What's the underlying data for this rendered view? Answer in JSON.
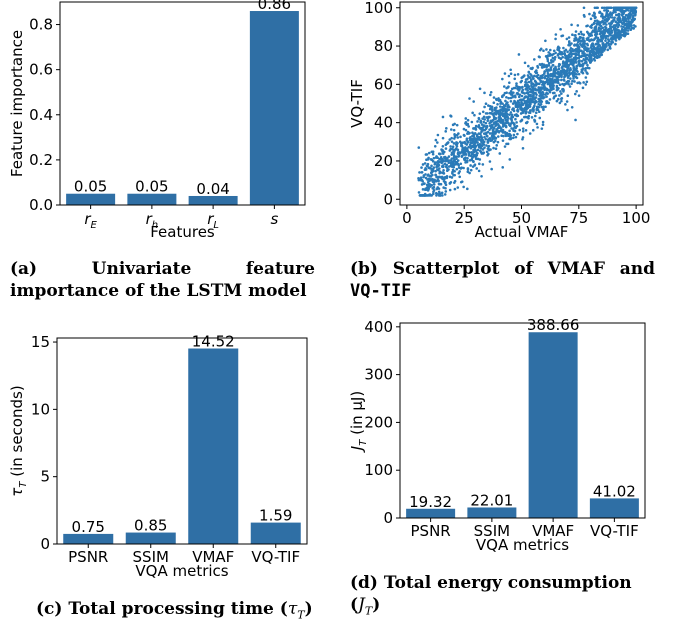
{
  "colors": {
    "bar": "#2f6fa5",
    "point": "#2a7ab8",
    "axis": "#000000"
  },
  "captions": {
    "a": "(a) Univariate feature importance of the LSTM model",
    "b_prefix": "(b) Scatterplot of VMAF and",
    "b_mono": "VQ-TIF",
    "c_prefix": "(c) Total processing time (",
    "c_math": "τ",
    "c_sub": "T",
    "c_suffix": ")",
    "d_prefix": "(d) Total energy consumption",
    "d_math": "J",
    "d_sub": "T"
  },
  "chart_data": [
    {
      "id": "a",
      "type": "bar",
      "categories": [
        "r_E",
        "r_h",
        "r_L",
        "s"
      ],
      "category_labels": [
        {
          "base": "r",
          "sub": "E"
        },
        {
          "base": "r",
          "sub": "h"
        },
        {
          "base": "r",
          "sub": "L"
        },
        {
          "base": "s",
          "sub": ""
        }
      ],
      "values": [
        0.05,
        0.05,
        0.04,
        0.86
      ],
      "data_labels": [
        "0.05",
        "0.05",
        "0.04",
        "0.86"
      ],
      "xlabel": "Features",
      "ylabel": "Feature importance",
      "ylim": [
        0,
        0.9
      ],
      "yticks": [
        0.0,
        0.2,
        0.4,
        0.6,
        0.8
      ],
      "ytick_labels": [
        "0.0",
        "0.2",
        "0.4",
        "0.6",
        "0.8"
      ],
      "grid": false
    },
    {
      "id": "b",
      "type": "scatter",
      "description_stats": {
        "n_points_approx": 2500,
        "x_range": [
          0,
          100
        ],
        "y_range": [
          0,
          100
        ],
        "relation": "y ≈ x with spread ~±12, clipped at 100"
      },
      "xlabel": "Actual VMAF",
      "ylabel": "VQ-TIF",
      "xlim": [
        -3,
        103
      ],
      "ylim": [
        -3,
        103
      ],
      "xticks": [
        0,
        25,
        50,
        75,
        100
      ],
      "yticks": [
        0,
        20,
        40,
        60,
        80,
        100
      ],
      "xtick_labels": [
        "0",
        "25",
        "50",
        "75",
        "100"
      ],
      "ytick_labels": [
        "0",
        "20",
        "40",
        "60",
        "80",
        "100"
      ],
      "grid": false
    },
    {
      "id": "c",
      "type": "bar",
      "categories": [
        "PSNR",
        "SSIM",
        "VMAF",
        "VQ-TIF"
      ],
      "values": [
        0.75,
        0.85,
        14.52,
        1.59
      ],
      "data_labels": [
        "0.75",
        "0.85",
        "14.52",
        "1.59"
      ],
      "xlabel": "VQA metrics",
      "ylabel_base": "τ",
      "ylabel_sub": "T",
      "ylabel_suffix": " (in seconds)",
      "ylim": [
        0,
        15.3
      ],
      "yticks": [
        0,
        5,
        10,
        15
      ],
      "ytick_labels": [
        "0",
        "5",
        "10",
        "15"
      ],
      "grid": false
    },
    {
      "id": "d",
      "type": "bar",
      "categories": [
        "PSNR",
        "SSIM",
        "VMAF",
        "VQ-TIF"
      ],
      "values": [
        19.32,
        22.01,
        388.66,
        41.02
      ],
      "data_labels": [
        "19.32",
        "22.01",
        "388.66",
        "41.02"
      ],
      "xlabel": "VQA metrics",
      "ylabel_base": "J",
      "ylabel_sub": "T",
      "ylabel_suffix": " (in μJ)",
      "ylim": [
        0,
        408
      ],
      "yticks": [
        0,
        100,
        200,
        300,
        400
      ],
      "ytick_labels": [
        "0",
        "100",
        "200",
        "300",
        "400"
      ],
      "grid": false
    }
  ]
}
